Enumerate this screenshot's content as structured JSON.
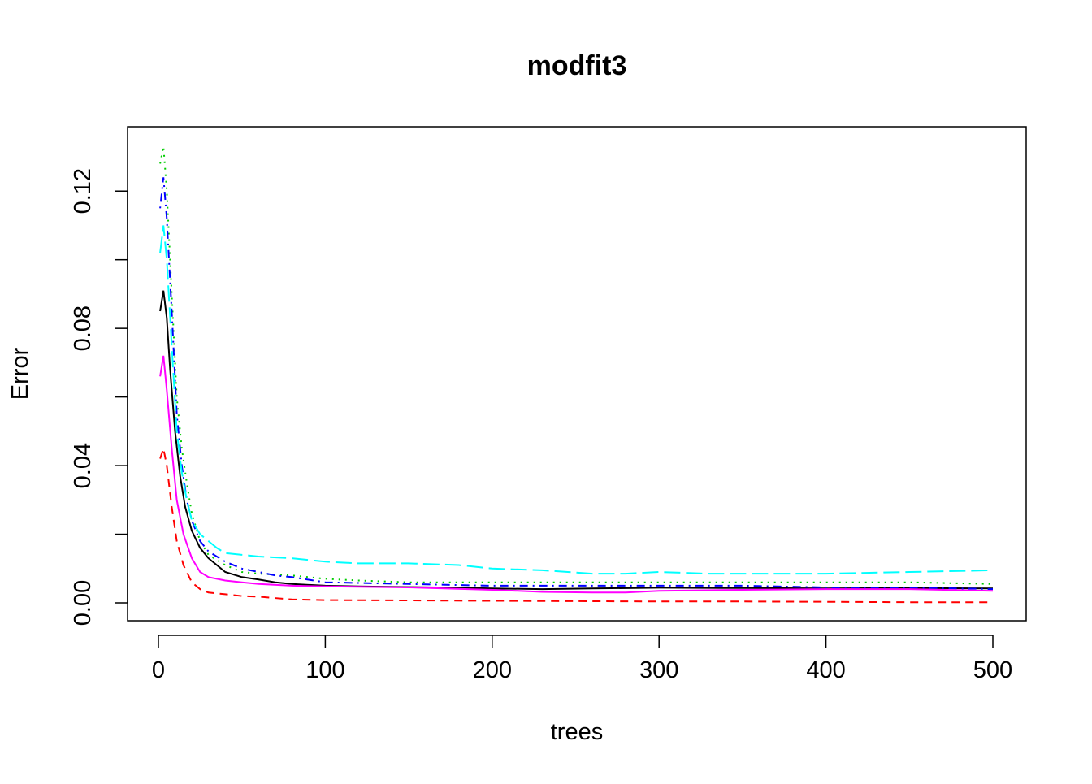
{
  "chart_data": {
    "type": "line",
    "title": "modfit3",
    "xlabel": "trees",
    "ylabel": "Error",
    "xlim": [
      0,
      500
    ],
    "ylim": [
      0,
      0.13
    ],
    "x_ticks": [
      0,
      100,
      200,
      300,
      400,
      500
    ],
    "x_tick_labels": [
      "0",
      "100",
      "200",
      "300",
      "400",
      "500"
    ],
    "y_ticks": [
      0.0,
      0.02,
      0.04,
      0.06,
      0.08,
      0.1,
      0.12
    ],
    "y_tick_labels": [
      "0.00",
      "",
      "0.04",
      "",
      "0.08",
      "",
      "0.12"
    ],
    "grid": false,
    "legend": "none",
    "series": [
      {
        "color": "#000000",
        "dash": "solid",
        "points": [
          [
            1,
            0.085
          ],
          [
            3,
            0.091
          ],
          [
            5,
            0.083
          ],
          [
            7,
            0.068
          ],
          [
            10,
            0.05
          ],
          [
            13,
            0.037
          ],
          [
            16,
            0.028
          ],
          [
            20,
            0.021
          ],
          [
            25,
            0.016
          ],
          [
            30,
            0.013
          ],
          [
            35,
            0.011
          ],
          [
            40,
            0.009
          ],
          [
            50,
            0.0075
          ],
          [
            60,
            0.0068
          ],
          [
            70,
            0.006
          ],
          [
            80,
            0.0055
          ],
          [
            100,
            0.005
          ],
          [
            120,
            0.0048
          ],
          [
            150,
            0.0046
          ],
          [
            180,
            0.0044
          ],
          [
            200,
            0.0042
          ],
          [
            230,
            0.004
          ],
          [
            260,
            0.0042
          ],
          [
            300,
            0.0044
          ],
          [
            350,
            0.0043
          ],
          [
            400,
            0.0042
          ],
          [
            450,
            0.0043
          ],
          [
            500,
            0.0042
          ]
        ]
      },
      {
        "color": "#ff0000",
        "dash": "dashed",
        "points": [
          [
            1,
            0.042
          ],
          [
            3,
            0.045
          ],
          [
            5,
            0.04
          ],
          [
            8,
            0.028
          ],
          [
            11,
            0.018
          ],
          [
            15,
            0.011
          ],
          [
            20,
            0.006
          ],
          [
            25,
            0.004
          ],
          [
            30,
            0.003
          ],
          [
            40,
            0.0025
          ],
          [
            50,
            0.002
          ],
          [
            60,
            0.0018
          ],
          [
            80,
            0.001
          ],
          [
            100,
            0.0008
          ],
          [
            150,
            0.0007
          ],
          [
            200,
            0.0006
          ],
          [
            250,
            0.0005
          ],
          [
            300,
            0.0004
          ],
          [
            350,
            0.0004
          ],
          [
            400,
            0.0003
          ],
          [
            450,
            0.0002
          ],
          [
            500,
            0.0002
          ]
        ]
      },
      {
        "color": "#00cd00",
        "dash": "dotted",
        "points": [
          [
            1,
            0.128
          ],
          [
            3,
            0.133
          ],
          [
            5,
            0.12
          ],
          [
            8,
            0.09
          ],
          [
            11,
            0.06
          ],
          [
            14,
            0.045
          ],
          [
            17,
            0.035
          ],
          [
            20,
            0.026
          ],
          [
            25,
            0.018
          ],
          [
            30,
            0.014
          ],
          [
            40,
            0.011
          ],
          [
            50,
            0.009
          ],
          [
            60,
            0.0085
          ],
          [
            80,
            0.008
          ],
          [
            100,
            0.007
          ],
          [
            120,
            0.0065
          ],
          [
            150,
            0.006
          ],
          [
            200,
            0.006
          ],
          [
            250,
            0.006
          ],
          [
            300,
            0.006
          ],
          [
            350,
            0.006
          ],
          [
            400,
            0.006
          ],
          [
            450,
            0.006
          ],
          [
            500,
            0.0055
          ]
        ]
      },
      {
        "color": "#0000ff",
        "dash": "dashdot",
        "points": [
          [
            1,
            0.115
          ],
          [
            3,
            0.124
          ],
          [
            5,
            0.112
          ],
          [
            8,
            0.085
          ],
          [
            11,
            0.055
          ],
          [
            14,
            0.04
          ],
          [
            17,
            0.03
          ],
          [
            20,
            0.024
          ],
          [
            25,
            0.018
          ],
          [
            30,
            0.015
          ],
          [
            40,
            0.012
          ],
          [
            50,
            0.01
          ],
          [
            60,
            0.009
          ],
          [
            70,
            0.008
          ],
          [
            80,
            0.0075
          ],
          [
            100,
            0.006
          ],
          [
            150,
            0.0055
          ],
          [
            200,
            0.005
          ],
          [
            250,
            0.005
          ],
          [
            300,
            0.005
          ],
          [
            350,
            0.005
          ],
          [
            400,
            0.0045
          ],
          [
            450,
            0.0045
          ],
          [
            500,
            0.004
          ]
        ]
      },
      {
        "color": "#00ffff",
        "dash": "longdash",
        "points": [
          [
            1,
            0.102
          ],
          [
            3,
            0.11
          ],
          [
            5,
            0.1
          ],
          [
            8,
            0.075
          ],
          [
            11,
            0.05
          ],
          [
            14,
            0.038
          ],
          [
            17,
            0.03
          ],
          [
            20,
            0.024
          ],
          [
            25,
            0.02
          ],
          [
            30,
            0.018
          ],
          [
            35,
            0.016
          ],
          [
            40,
            0.0145
          ],
          [
            50,
            0.014
          ],
          [
            60,
            0.0135
          ],
          [
            80,
            0.013
          ],
          [
            100,
            0.012
          ],
          [
            120,
            0.0115
          ],
          [
            150,
            0.0115
          ],
          [
            180,
            0.011
          ],
          [
            200,
            0.01
          ],
          [
            230,
            0.0095
          ],
          [
            260,
            0.0085
          ],
          [
            280,
            0.0085
          ],
          [
            300,
            0.009
          ],
          [
            330,
            0.0085
          ],
          [
            360,
            0.0085
          ],
          [
            400,
            0.0085
          ],
          [
            450,
            0.009
          ],
          [
            500,
            0.0095
          ]
        ]
      },
      {
        "color": "#ff00ff",
        "dash": "solid",
        "points": [
          [
            1,
            0.066
          ],
          [
            3,
            0.072
          ],
          [
            5,
            0.062
          ],
          [
            8,
            0.045
          ],
          [
            11,
            0.03
          ],
          [
            15,
            0.02
          ],
          [
            20,
            0.013
          ],
          [
            25,
            0.009
          ],
          [
            30,
            0.0075
          ],
          [
            40,
            0.0065
          ],
          [
            50,
            0.006
          ],
          [
            60,
            0.0055
          ],
          [
            80,
            0.005
          ],
          [
            100,
            0.0048
          ],
          [
            150,
            0.0045
          ],
          [
            200,
            0.0038
          ],
          [
            230,
            0.0032
          ],
          [
            260,
            0.003
          ],
          [
            280,
            0.003
          ],
          [
            300,
            0.0035
          ],
          [
            350,
            0.0038
          ],
          [
            400,
            0.004
          ],
          [
            450,
            0.004
          ],
          [
            500,
            0.0035
          ]
        ]
      }
    ]
  }
}
